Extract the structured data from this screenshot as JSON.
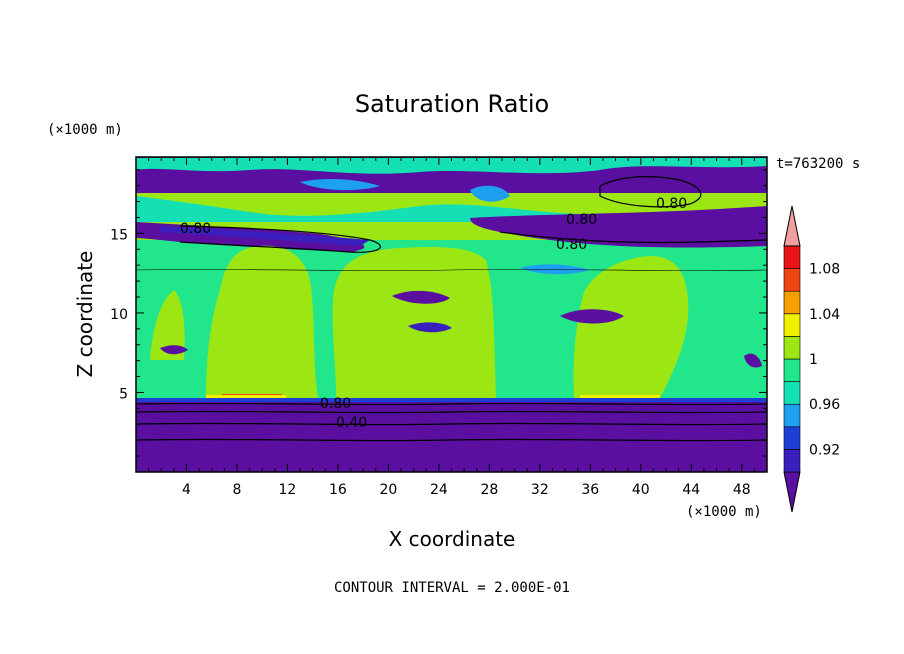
{
  "chart_data": {
    "type": "heatmap",
    "title": "Saturation Ratio",
    "xlabel": "X coordinate",
    "ylabel": "Z coordinate",
    "x_unit": "(×1000 m)",
    "y_unit": "(×1000 m)",
    "time_label": "t=763200 s",
    "footer": "CONTOUR INTERVAL = 2.000E-01",
    "xlim": [
      0,
      50
    ],
    "ylim": [
      0,
      19.8
    ],
    "xticks": [
      "4",
      "8",
      "12",
      "16",
      "20",
      "24",
      "28",
      "32",
      "36",
      "40",
      "44",
      "48"
    ],
    "yticks": [
      "5",
      "10",
      "15"
    ],
    "colorbar": {
      "labels": [
        "0.92",
        "0.96",
        "1",
        "1.04",
        "1.08"
      ],
      "levels": [
        0.9,
        0.92,
        0.94,
        0.96,
        0.98,
        1.0,
        1.02,
        1.04,
        1.06,
        1.08,
        1.1
      ],
      "colors": [
        "#5a0fa0",
        "#3a1fbe",
        "#1e3fd6",
        "#1ea0f0",
        "#14e0b4",
        "#22e68c",
        "#9ce614",
        "#f0f000",
        "#f5a000",
        "#f04614",
        "#e61414",
        "#f0a0a0"
      ]
    },
    "contour_labels": [
      "0.80",
      "0.80",
      "0.80",
      "0.80",
      "0.80",
      "0.40"
    ]
  }
}
